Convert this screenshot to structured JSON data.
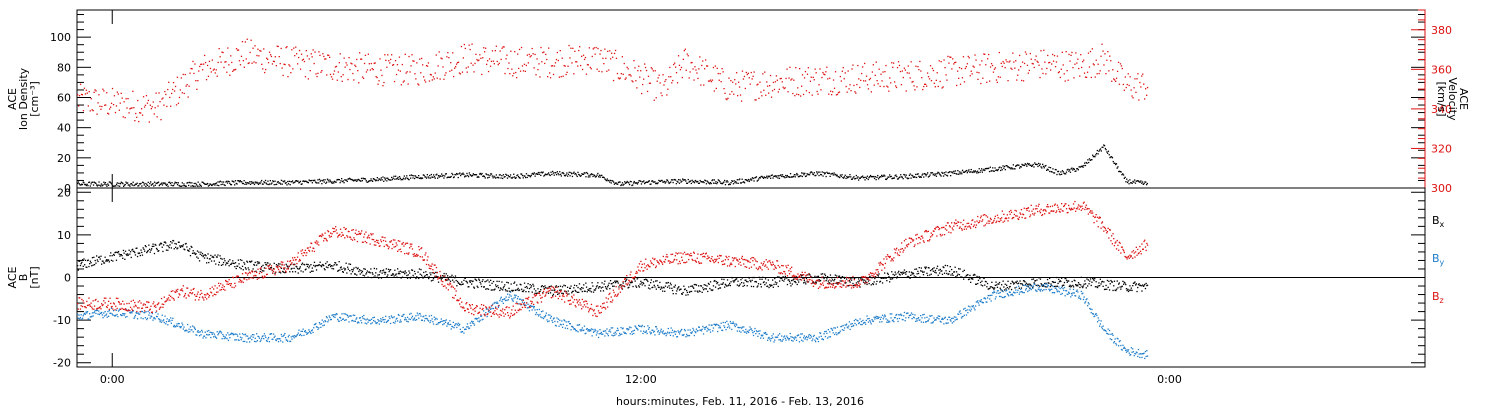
{
  "xaxis": {
    "label": "hours:minutes, Feb. 11, 2016 - Feb. 13, 2016",
    "range_hours": [
      -0.8,
      29.8
    ],
    "ticks": [
      {
        "hour": 0,
        "label": "0:00"
      },
      {
        "hour": 12,
        "label": "12:00"
      },
      {
        "hour": 24,
        "label": "0:00"
      }
    ],
    "minor_step_hours": 1,
    "data_end_hour": 23.5
  },
  "chart_data": [
    {
      "type": "scatter",
      "panel": "top",
      "left_axis": {
        "label_lines": [
          "ACE",
          "Ion Density",
          "[cm⁻³]"
        ],
        "ylim": [
          0,
          118
        ],
        "ticks": [
          0,
          20,
          40,
          60,
          80,
          100
        ],
        "minor_step": 5
      },
      "right_axis": {
        "label_lines": [
          "ACE",
          "Velocity",
          "[km/s]"
        ],
        "ylim": [
          300,
          390
        ],
        "ticks": [
          300,
          320,
          340,
          360,
          380
        ],
        "minor_step": 5,
        "color": "#dd1111"
      },
      "series": [
        {
          "key": "density",
          "axis": "left",
          "color": "#000000",
          "points": [
            [
              -0.8,
              3
            ],
            [
              0,
              3
            ],
            [
              1,
              3
            ],
            [
              2,
              3
            ],
            [
              3,
              4
            ],
            [
              4,
              4
            ],
            [
              5,
              5
            ],
            [
              6,
              6
            ],
            [
              6.5,
              7
            ],
            [
              7,
              8
            ],
            [
              8,
              9
            ],
            [
              9,
              8
            ],
            [
              10,
              10
            ],
            [
              11,
              9
            ],
            [
              11.5,
              3
            ],
            [
              12,
              4
            ],
            [
              13,
              5
            ],
            [
              14,
              4
            ],
            [
              15,
              8
            ],
            [
              16,
              10
            ],
            [
              17,
              7
            ],
            [
              18,
              8
            ],
            [
              19,
              10
            ],
            [
              20,
              13
            ],
            [
              21,
              16
            ],
            [
              21.5,
              10
            ],
            [
              22,
              14
            ],
            [
              22.5,
              28
            ],
            [
              23,
              5
            ],
            [
              23.5,
              3
            ]
          ]
        },
        {
          "key": "velocity",
          "axis": "right",
          "color": "#dd1111",
          "points": [
            [
              -0.8,
              345
            ],
            [
              0,
              343
            ],
            [
              1,
              341
            ],
            [
              1.5,
              350
            ],
            [
              2,
              360
            ],
            [
              3,
              368
            ],
            [
              4,
              364
            ],
            [
              5,
              362
            ],
            [
              6,
              360
            ],
            [
              7,
              360
            ],
            [
              8,
              366
            ],
            [
              9,
              364
            ],
            [
              10,
              364
            ],
            [
              11,
              366
            ],
            [
              12,
              356
            ],
            [
              12.5,
              350
            ],
            [
              13,
              364
            ],
            [
              14,
              351
            ],
            [
              15,
              354
            ],
            [
              16,
              355
            ],
            [
              17,
              356
            ],
            [
              18,
              357
            ],
            [
              19,
              359
            ],
            [
              20,
              361
            ],
            [
              21,
              363
            ],
            [
              22,
              362
            ],
            [
              22.5,
              366
            ],
            [
              23,
              352
            ],
            [
              23.5,
              352
            ]
          ]
        }
      ]
    },
    {
      "type": "scatter",
      "panel": "bottom",
      "left_axis": {
        "label_lines": [
          "ACE",
          "B",
          "[nT]"
        ],
        "ylim": [
          -21,
          21
        ],
        "ticks": [
          -20,
          -10,
          0,
          10,
          20
        ],
        "minor_step": 2
      },
      "zero_line": true,
      "legend": [
        "Bx",
        "By",
        "Bz"
      ],
      "series": [
        {
          "key": "Bx",
          "name": "Bx",
          "color": "#000000",
          "points": [
            [
              -0.8,
              3
            ],
            [
              0,
              5
            ],
            [
              1,
              7
            ],
            [
              1.5,
              8
            ],
            [
              2,
              5
            ],
            [
              3,
              3
            ],
            [
              4,
              2
            ],
            [
              5,
              3
            ],
            [
              6,
              1
            ],
            [
              7,
              1
            ],
            [
              8,
              -1
            ],
            [
              9,
              -2
            ],
            [
              10,
              -3
            ],
            [
              11,
              -2
            ],
            [
              12,
              -1
            ],
            [
              13,
              -3
            ],
            [
              14,
              -1
            ],
            [
              15,
              -1
            ],
            [
              16,
              0
            ],
            [
              17,
              -1
            ],
            [
              18,
              1
            ],
            [
              19,
              2
            ],
            [
              20,
              -2
            ],
            [
              21,
              -1
            ],
            [
              22,
              -1
            ],
            [
              23,
              -2
            ],
            [
              23.5,
              -2
            ]
          ]
        },
        {
          "key": "By",
          "name": "By",
          "color": "#1f7dc9",
          "points": [
            [
              -0.8,
              -9
            ],
            [
              0,
              -8
            ],
            [
              1,
              -9
            ],
            [
              1.5,
              -11
            ],
            [
              2,
              -13
            ],
            [
              3,
              -14
            ],
            [
              4,
              -14
            ],
            [
              4.5,
              -12
            ],
            [
              5,
              -9
            ],
            [
              6,
              -10
            ],
            [
              7,
              -9
            ],
            [
              8,
              -12
            ],
            [
              9,
              -4
            ],
            [
              10,
              -10
            ],
            [
              11,
              -13
            ],
            [
              12,
              -12
            ],
            [
              13,
              -13
            ],
            [
              14,
              -11
            ],
            [
              15,
              -14
            ],
            [
              16,
              -14
            ],
            [
              17,
              -10
            ],
            [
              18,
              -9
            ],
            [
              19,
              -10
            ],
            [
              20,
              -4
            ],
            [
              21,
              -2
            ],
            [
              22,
              -4
            ],
            [
              22.5,
              -12
            ],
            [
              23,
              -17
            ],
            [
              23.5,
              -18
            ]
          ]
        },
        {
          "key": "Bz",
          "name": "Bz",
          "color": "#dd1111",
          "points": [
            [
              -0.8,
              -6
            ],
            [
              0,
              -6
            ],
            [
              1,
              -7
            ],
            [
              1.5,
              -3
            ],
            [
              2,
              -4
            ],
            [
              3,
              0
            ],
            [
              4,
              3
            ],
            [
              5,
              11
            ],
            [
              6,
              9
            ],
            [
              7,
              6
            ],
            [
              8,
              -7
            ],
            [
              9,
              -8
            ],
            [
              10,
              -3
            ],
            [
              11,
              -8
            ],
            [
              12,
              3
            ],
            [
              13,
              5
            ],
            [
              14,
              4
            ],
            [
              15,
              3
            ],
            [
              16,
              -1
            ],
            [
              17,
              -1
            ],
            [
              18,
              8
            ],
            [
              19,
              12
            ],
            [
              20,
              14
            ],
            [
              21,
              16
            ],
            [
              22,
              17
            ],
            [
              22.5,
              12
            ],
            [
              23,
              5
            ],
            [
              23.5,
              8
            ]
          ]
        }
      ]
    }
  ]
}
